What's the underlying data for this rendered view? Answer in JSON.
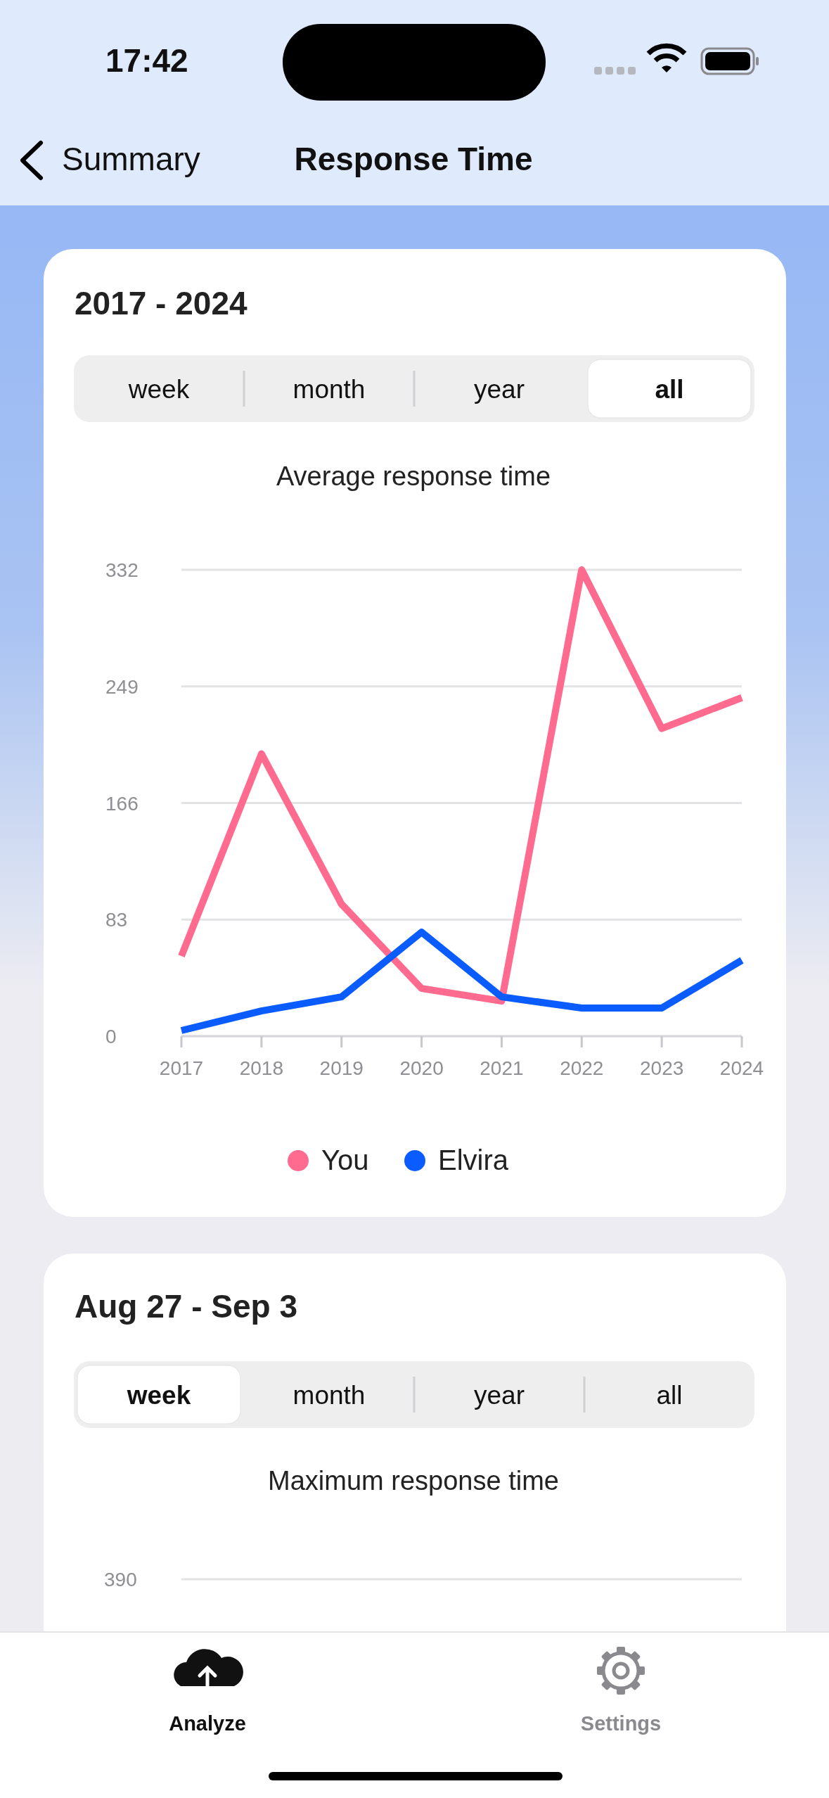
{
  "chart_data": [
    {
      "type": "line",
      "title": "Average response time",
      "subtitle": "2017 - 2024",
      "categories": [
        "2017",
        "2018",
        "2019",
        "2020",
        "2021",
        "2022",
        "2023",
        "2024"
      ],
      "series": [
        {
          "name": "You",
          "color": "#ff6b8e",
          "values": [
            57,
            201,
            94,
            34,
            25,
            332,
            219,
            241
          ]
        },
        {
          "name": "Elvira",
          "color": "#0a5cff",
          "values": [
            4,
            18,
            28,
            74,
            28,
            20,
            20,
            54
          ]
        }
      ],
      "ylim": [
        0,
        332
      ],
      "yticks": [
        0,
        83,
        166,
        249,
        332
      ],
      "grid": "y",
      "legend": "bottom",
      "marker": "none",
      "line_style": "solid",
      "annotations": [
        "17:42",
        "Summary",
        "Response Time",
        "week",
        "month",
        "year",
        "all"
      ]
    },
    {
      "type": "other",
      "title": "Maximum response time",
      "subtitle": "Aug 27 - Sep 3",
      "annotations": [
        "week",
        "month",
        "year",
        "all",
        "Analyze",
        "Settings",
        "390"
      ]
    }
  ]
}
